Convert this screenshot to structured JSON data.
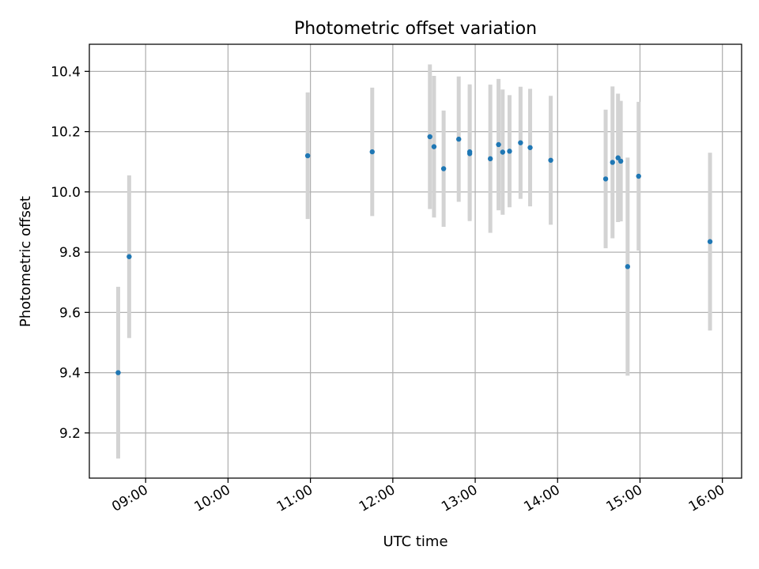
{
  "chart_data": {
    "type": "scatter",
    "title": "Photometric offset variation",
    "xlabel": "UTC time",
    "ylabel": "Photometric offset",
    "x_axis_type": "time",
    "xlim": [
      "08:19",
      "16:14"
    ],
    "ylim": [
      9.05,
      10.49
    ],
    "x_ticks": [
      "09:00",
      "10:00",
      "11:00",
      "12:00",
      "13:00",
      "14:00",
      "15:00",
      "16:00"
    ],
    "y_ticks": [
      9.2,
      9.4,
      9.6,
      9.8,
      10.0,
      10.2,
      10.4
    ],
    "grid": true,
    "legend": "none",
    "colors": {
      "marker": "#1f77b4",
      "errorbar": "#d3d3d3",
      "grid": "#b0b0b0"
    },
    "points": [
      {
        "x": "08:40",
        "y": 9.4,
        "yerr": 0.285
      },
      {
        "x": "08:48",
        "y": 9.785,
        "yerr": 0.27
      },
      {
        "x": "10:58",
        "y": 10.12,
        "yerr": 0.21
      },
      {
        "x": "11:45",
        "y": 10.133,
        "yerr": 0.213
      },
      {
        "x": "12:27",
        "y": 10.183,
        "yerr": 0.24
      },
      {
        "x": "12:30",
        "y": 10.15,
        "yerr": 0.235
      },
      {
        "x": "12:37",
        "y": 10.077,
        "yerr": 0.193
      },
      {
        "x": "12:48",
        "y": 10.175,
        "yerr": 0.208
      },
      {
        "x": "12:56",
        "y": 10.133,
        "yerr": 0.224
      },
      {
        "x": "12:56",
        "y": 10.127,
        "yerr": 0.224
      },
      {
        "x": "13:11",
        "y": 10.11,
        "yerr": 0.246
      },
      {
        "x": "13:17",
        "y": 10.157,
        "yerr": 0.218
      },
      {
        "x": "13:20",
        "y": 10.132,
        "yerr": 0.208
      },
      {
        "x": "13:25",
        "y": 10.135,
        "yerr": 0.186
      },
      {
        "x": "13:33",
        "y": 10.163,
        "yerr": 0.186
      },
      {
        "x": "13:40",
        "y": 10.147,
        "yerr": 0.195
      },
      {
        "x": "13:55",
        "y": 10.105,
        "yerr": 0.214
      },
      {
        "x": "14:35",
        "y": 10.043,
        "yerr": 0.23
      },
      {
        "x": "14:40",
        "y": 10.098,
        "yerr": 0.252
      },
      {
        "x": "14:44",
        "y": 10.113,
        "yerr": 0.213
      },
      {
        "x": "14:46",
        "y": 10.102,
        "yerr": 0.2
      },
      {
        "x": "14:51",
        "y": 9.752,
        "yerr": 0.362
      },
      {
        "x": "14:59",
        "y": 10.052,
        "yerr": 0.247
      },
      {
        "x": "15:51",
        "y": 9.835,
        "yerr": 0.295
      }
    ]
  }
}
